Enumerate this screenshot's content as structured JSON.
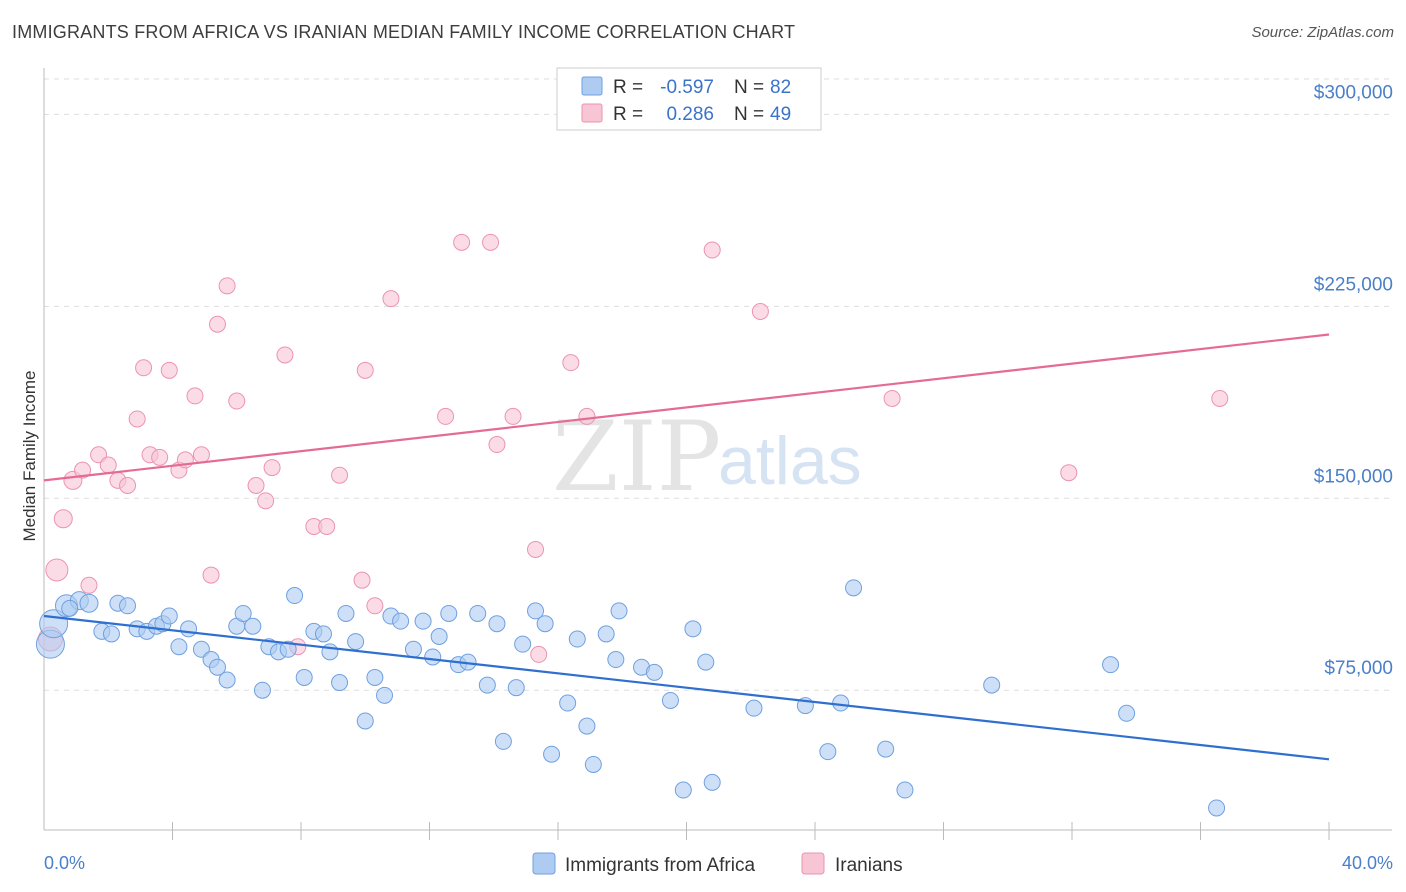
{
  "title": "IMMIGRANTS FROM AFRICA VS IRANIAN MEDIAN FAMILY INCOME CORRELATION CHART",
  "source": "Source: ZipAtlas.com",
  "watermark": {
    "zip": "ZIP",
    "atlas": "atlas"
  },
  "colors": {
    "africa_fill": "#aecbf2",
    "africa_stroke": "#6fa0e0",
    "africa_line": "#2f6fd0",
    "iranian_fill": "#f8c5d5",
    "iranian_stroke": "#ec93b0",
    "iranian_line": "#e56b97",
    "grid": "#dddddd",
    "axis": "#bbbbbb",
    "tick_text": "#4a7fc9"
  },
  "legend_top": {
    "rows": [
      {
        "r_label": "R =",
        "r_value": "-0.597",
        "n_label": "N =",
        "n_value": "82"
      },
      {
        "r_label": "R =",
        "r_value": "0.286",
        "n_label": "N =",
        "n_value": "49"
      }
    ]
  },
  "legend_bottom": [
    "Immigrants from Africa",
    "Iranians"
  ],
  "chart_data": {
    "type": "scatter",
    "title": "IMMIGRANTS FROM AFRICA VS IRANIAN MEDIAN FAMILY INCOME CORRELATION CHART",
    "xlabel": "",
    "ylabel": "Median Family Income",
    "xlim": [
      0,
      40
    ],
    "ylim": [
      20000,
      315000
    ],
    "x_tick_labels": [
      "0.0%",
      "40.0%"
    ],
    "y_ticks": [
      75000,
      150000,
      225000,
      300000
    ],
    "y_tick_labels": [
      "$75,000",
      "$150,000",
      "$225,000",
      "$300,000"
    ],
    "grid": true,
    "legend_position": "top-center",
    "series": [
      {
        "name": "Immigrants from Africa",
        "r": -0.597,
        "n": 82,
        "trend": {
          "x": [
            0,
            40
          ],
          "y": [
            104000,
            48000
          ]
        },
        "points": [
          {
            "x": 0.2,
            "y": 93000,
            "s": 14
          },
          {
            "x": 0.3,
            "y": 101000,
            "s": 14
          },
          {
            "x": 0.7,
            "y": 108000,
            "s": 11
          },
          {
            "x": 1.1,
            "y": 110000,
            "s": 9
          },
          {
            "x": 1.4,
            "y": 109000,
            "s": 9
          },
          {
            "x": 1.8,
            "y": 98000,
            "s": 8
          },
          {
            "x": 2.1,
            "y": 97000,
            "s": 8
          },
          {
            "x": 2.3,
            "y": 109000,
            "s": 8
          },
          {
            "x": 2.6,
            "y": 108000,
            "s": 8
          },
          {
            "x": 2.9,
            "y": 99000,
            "s": 8
          },
          {
            "x": 3.2,
            "y": 98000,
            "s": 8
          },
          {
            "x": 3.5,
            "y": 100000,
            "s": 8
          },
          {
            "x": 3.7,
            "y": 101000,
            "s": 8
          },
          {
            "x": 3.9,
            "y": 104000,
            "s": 8
          },
          {
            "x": 4.2,
            "y": 92000,
            "s": 8
          },
          {
            "x": 4.5,
            "y": 99000,
            "s": 8
          },
          {
            "x": 4.9,
            "y": 91000,
            "s": 8
          },
          {
            "x": 5.2,
            "y": 87000,
            "s": 8
          },
          {
            "x": 5.4,
            "y": 84000,
            "s": 8
          },
          {
            "x": 5.7,
            "y": 79000,
            "s": 8
          },
          {
            "x": 6.0,
            "y": 100000,
            "s": 8
          },
          {
            "x": 6.2,
            "y": 105000,
            "s": 8
          },
          {
            "x": 6.5,
            "y": 100000,
            "s": 8
          },
          {
            "x": 6.8,
            "y": 75000,
            "s": 8
          },
          {
            "x": 7.0,
            "y": 92000,
            "s": 8
          },
          {
            "x": 7.3,
            "y": 90000,
            "s": 8
          },
          {
            "x": 7.6,
            "y": 91000,
            "s": 8
          },
          {
            "x": 7.8,
            "y": 112000,
            "s": 8
          },
          {
            "x": 8.1,
            "y": 80000,
            "s": 8
          },
          {
            "x": 8.4,
            "y": 98000,
            "s": 8
          },
          {
            "x": 8.7,
            "y": 97000,
            "s": 8
          },
          {
            "x": 8.9,
            "y": 90000,
            "s": 8
          },
          {
            "x": 9.2,
            "y": 78000,
            "s": 8
          },
          {
            "x": 9.4,
            "y": 105000,
            "s": 8
          },
          {
            "x": 9.7,
            "y": 94000,
            "s": 8
          },
          {
            "x": 10.0,
            "y": 63000,
            "s": 8
          },
          {
            "x": 10.3,
            "y": 80000,
            "s": 8
          },
          {
            "x": 10.6,
            "y": 73000,
            "s": 8
          },
          {
            "x": 10.8,
            "y": 104000,
            "s": 8
          },
          {
            "x": 11.1,
            "y": 102000,
            "s": 8
          },
          {
            "x": 11.5,
            "y": 91000,
            "s": 8
          },
          {
            "x": 11.8,
            "y": 102000,
            "s": 8
          },
          {
            "x": 12.1,
            "y": 88000,
            "s": 8
          },
          {
            "x": 12.3,
            "y": 96000,
            "s": 8
          },
          {
            "x": 12.6,
            "y": 105000,
            "s": 8
          },
          {
            "x": 12.9,
            "y": 85000,
            "s": 8
          },
          {
            "x": 13.2,
            "y": 86000,
            "s": 8
          },
          {
            "x": 13.5,
            "y": 105000,
            "s": 8
          },
          {
            "x": 13.8,
            "y": 77000,
            "s": 8
          },
          {
            "x": 14.1,
            "y": 101000,
            "s": 8
          },
          {
            "x": 14.3,
            "y": 55000,
            "s": 8
          },
          {
            "x": 14.7,
            "y": 76000,
            "s": 8
          },
          {
            "x": 14.9,
            "y": 93000,
            "s": 8
          },
          {
            "x": 15.3,
            "y": 106000,
            "s": 8
          },
          {
            "x": 15.6,
            "y": 101000,
            "s": 8
          },
          {
            "x": 15.8,
            "y": 50000,
            "s": 8
          },
          {
            "x": 16.3,
            "y": 70000,
            "s": 8
          },
          {
            "x": 16.6,
            "y": 95000,
            "s": 8
          },
          {
            "x": 16.9,
            "y": 61000,
            "s": 8
          },
          {
            "x": 17.1,
            "y": 46000,
            "s": 8
          },
          {
            "x": 17.5,
            "y": 97000,
            "s": 8
          },
          {
            "x": 17.8,
            "y": 87000,
            "s": 8
          },
          {
            "x": 17.9,
            "y": 106000,
            "s": 8
          },
          {
            "x": 18.6,
            "y": 84000,
            "s": 8
          },
          {
            "x": 19.0,
            "y": 82000,
            "s": 8
          },
          {
            "x": 19.5,
            "y": 71000,
            "s": 8
          },
          {
            "x": 19.9,
            "y": 36000,
            "s": 8
          },
          {
            "x": 20.2,
            "y": 99000,
            "s": 8
          },
          {
            "x": 20.6,
            "y": 86000,
            "s": 8
          },
          {
            "x": 20.8,
            "y": 39000,
            "s": 8
          },
          {
            "x": 22.1,
            "y": 68000,
            "s": 8
          },
          {
            "x": 23.7,
            "y": 69000,
            "s": 8
          },
          {
            "x": 24.4,
            "y": 51000,
            "s": 8
          },
          {
            "x": 24.8,
            "y": 70000,
            "s": 8
          },
          {
            "x": 25.2,
            "y": 115000,
            "s": 8
          },
          {
            "x": 26.2,
            "y": 52000,
            "s": 8
          },
          {
            "x": 26.8,
            "y": 36000,
            "s": 8
          },
          {
            "x": 29.5,
            "y": 77000,
            "s": 8
          },
          {
            "x": 33.2,
            "y": 85000,
            "s": 8
          },
          {
            "x": 33.7,
            "y": 66000,
            "s": 8
          },
          {
            "x": 36.5,
            "y": 29000,
            "s": 8
          },
          {
            "x": 0.8,
            "y": 107000,
            "s": 8
          }
        ]
      },
      {
        "name": "Iranians",
        "r": 0.286,
        "n": 49,
        "trend": {
          "x": [
            0,
            40
          ],
          "y": [
            157000,
            214000
          ]
        },
        "points": [
          {
            "x": 0.2,
            "y": 95000,
            "s": 12
          },
          {
            "x": 0.4,
            "y": 122000,
            "s": 11
          },
          {
            "x": 0.6,
            "y": 142000,
            "s": 9
          },
          {
            "x": 0.9,
            "y": 157000,
            "s": 9
          },
          {
            "x": 1.2,
            "y": 161000,
            "s": 8
          },
          {
            "x": 1.4,
            "y": 116000,
            "s": 8
          },
          {
            "x": 1.7,
            "y": 167000,
            "s": 8
          },
          {
            "x": 2.0,
            "y": 163000,
            "s": 8
          },
          {
            "x": 2.3,
            "y": 157000,
            "s": 8
          },
          {
            "x": 2.6,
            "y": 155000,
            "s": 8
          },
          {
            "x": 2.9,
            "y": 181000,
            "s": 8
          },
          {
            "x": 3.1,
            "y": 201000,
            "s": 8
          },
          {
            "x": 3.3,
            "y": 167000,
            "s": 8
          },
          {
            "x": 3.6,
            "y": 166000,
            "s": 8
          },
          {
            "x": 3.9,
            "y": 200000,
            "s": 8
          },
          {
            "x": 4.2,
            "y": 161000,
            "s": 8
          },
          {
            "x": 4.4,
            "y": 165000,
            "s": 8
          },
          {
            "x": 4.7,
            "y": 190000,
            "s": 8
          },
          {
            "x": 4.9,
            "y": 167000,
            "s": 8
          },
          {
            "x": 5.2,
            "y": 120000,
            "s": 8
          },
          {
            "x": 5.4,
            "y": 218000,
            "s": 8
          },
          {
            "x": 5.7,
            "y": 233000,
            "s": 8
          },
          {
            "x": 6.0,
            "y": 188000,
            "s": 8
          },
          {
            "x": 6.6,
            "y": 155000,
            "s": 8
          },
          {
            "x": 6.9,
            "y": 149000,
            "s": 8
          },
          {
            "x": 7.1,
            "y": 162000,
            "s": 8
          },
          {
            "x": 7.5,
            "y": 206000,
            "s": 8
          },
          {
            "x": 7.9,
            "y": 92000,
            "s": 8
          },
          {
            "x": 8.4,
            "y": 139000,
            "s": 8
          },
          {
            "x": 8.8,
            "y": 139000,
            "s": 8
          },
          {
            "x": 9.2,
            "y": 159000,
            "s": 8
          },
          {
            "x": 9.9,
            "y": 118000,
            "s": 8
          },
          {
            "x": 10.0,
            "y": 200000,
            "s": 8
          },
          {
            "x": 10.3,
            "y": 108000,
            "s": 8
          },
          {
            "x": 10.8,
            "y": 228000,
            "s": 8
          },
          {
            "x": 12.5,
            "y": 182000,
            "s": 8
          },
          {
            "x": 13.0,
            "y": 250000,
            "s": 8
          },
          {
            "x": 13.9,
            "y": 250000,
            "s": 8
          },
          {
            "x": 14.1,
            "y": 171000,
            "s": 8
          },
          {
            "x": 14.6,
            "y": 182000,
            "s": 8
          },
          {
            "x": 15.3,
            "y": 130000,
            "s": 8
          },
          {
            "x": 15.4,
            "y": 89000,
            "s": 8
          },
          {
            "x": 16.4,
            "y": 203000,
            "s": 8
          },
          {
            "x": 16.9,
            "y": 182000,
            "s": 8
          },
          {
            "x": 20.8,
            "y": 247000,
            "s": 8
          },
          {
            "x": 22.3,
            "y": 223000,
            "s": 8
          },
          {
            "x": 26.4,
            "y": 189000,
            "s": 8
          },
          {
            "x": 31.9,
            "y": 160000,
            "s": 8
          },
          {
            "x": 36.6,
            "y": 189000,
            "s": 8
          }
        ]
      }
    ]
  }
}
